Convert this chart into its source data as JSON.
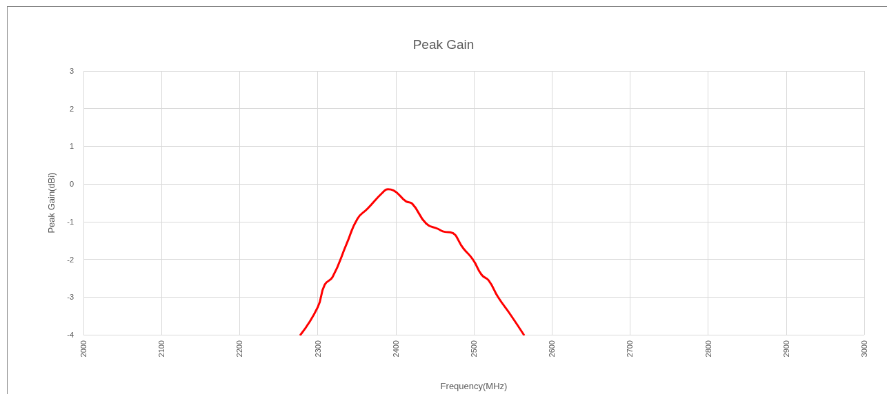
{
  "chart_data": {
    "type": "line",
    "title": "Peak Gain",
    "xlabel": "Frequency(MHz)",
    "ylabel": "Peak Gain(dBi)",
    "x": [
      2278,
      2300,
      2309,
      2319,
      2337,
      2351,
      2364,
      2383,
      2390,
      2397,
      2413,
      2421,
      2439,
      2454,
      2463,
      2470,
      2487,
      2499,
      2510,
      2519,
      2531,
      2547,
      2564
    ],
    "series": [
      {
        "color": "#ff0000",
        "values": [
          -4.0,
          -3.27,
          -2.67,
          -2.47,
          -1.59,
          -0.92,
          -0.65,
          -0.23,
          -0.14,
          -0.17,
          -0.46,
          -0.52,
          -1.05,
          -1.19,
          -1.27,
          -1.28,
          -1.72,
          -2.01,
          -2.41,
          -2.56,
          -3.0,
          -3.47,
          -4.0
        ]
      }
    ],
    "xlim": [
      2000,
      3000
    ],
    "xticks": [
      2000,
      2100,
      2200,
      2300,
      2400,
      2500,
      2600,
      2700,
      2800,
      2900,
      3000
    ],
    "ylim": [
      -4,
      3
    ],
    "yticks": [
      -4,
      -3,
      -2,
      -1,
      0,
      1,
      2,
      3
    ],
    "grid": true,
    "marker": "none",
    "line_style": "solid"
  }
}
